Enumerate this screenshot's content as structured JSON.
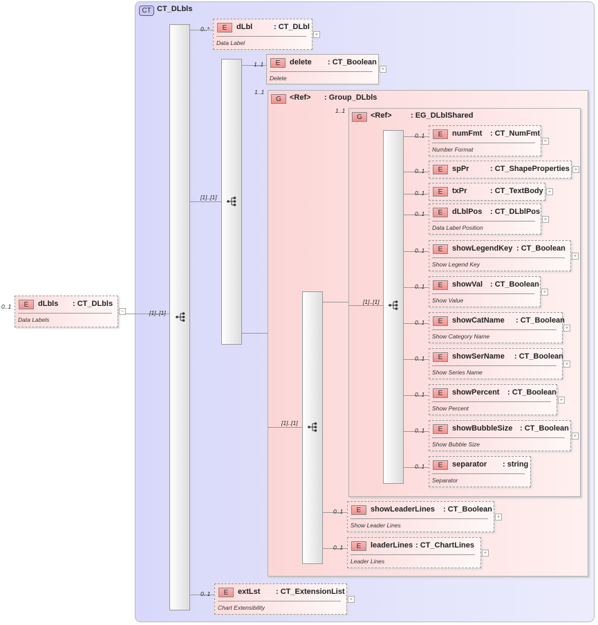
{
  "complex_type": {
    "badge": "CT",
    "name": "CT_DLbls"
  },
  "root": {
    "badge": "E",
    "name": "dLbls",
    "type": ": CT_DLbls",
    "doc": "Data Labels",
    "cardinality": "0..1",
    "expander": "−"
  },
  "sequences": [
    {
      "cardinality": "[1]..[1]"
    },
    {
      "cardinality": "[1]..[1]"
    },
    {
      "cardinality": "[1]..[1]"
    },
    {
      "cardinality": "[1]..[1]"
    }
  ],
  "groups": [
    {
      "badge": "G",
      "name": "<Ref>",
      "type": ": Group_DLbls",
      "cardinality": "1..1"
    },
    {
      "badge": "G",
      "name": "<Ref>",
      "type": ": EG_DLblShared",
      "cardinality": "1..1"
    }
  ],
  "elements": [
    {
      "name": "dLbl",
      "type": ": CT_DLbl",
      "doc": "Data Label",
      "cardinality": "0..*",
      "optional": true
    },
    {
      "name": "delete",
      "type": ": CT_Boolean",
      "doc": "Delete",
      "cardinality": "1..1",
      "optional": false
    },
    {
      "name": "numFmt",
      "type": ": CT_NumFmt",
      "doc": "Number Format",
      "cardinality": "0..1",
      "optional": true
    },
    {
      "name": "spPr",
      "type": ": CT_ShapeProperties",
      "doc": "",
      "cardinality": "0..1",
      "optional": true
    },
    {
      "name": "txPr",
      "type": ": CT_TextBody",
      "doc": "",
      "cardinality": "0..1",
      "optional": true
    },
    {
      "name": "dLblPos",
      "type": ": CT_DLblPos",
      "doc": "Data Label Position",
      "cardinality": "0..1",
      "optional": true
    },
    {
      "name": "showLegendKey",
      "type": ": CT_Boolean",
      "doc": "Show Legend Key",
      "cardinality": "0..1",
      "optional": true
    },
    {
      "name": "showVal",
      "type": ": CT_Boolean",
      "doc": "Show Value",
      "cardinality": "0..1",
      "optional": true
    },
    {
      "name": "showCatName",
      "type": ": CT_Boolean",
      "doc": "Show Category Name",
      "cardinality": "0..1",
      "optional": true
    },
    {
      "name": "showSerName",
      "type": ": CT_Boolean",
      "doc": "Show Series Name",
      "cardinality": "0..1",
      "optional": true
    },
    {
      "name": "showPercent",
      "type": ": CT_Boolean",
      "doc": "Show Percent",
      "cardinality": "0..1",
      "optional": true
    },
    {
      "name": "showBubbleSize",
      "type": ": CT_Boolean",
      "doc": "Show Bubble Size",
      "cardinality": "0..1",
      "optional": true
    },
    {
      "name": "separator",
      "type": ": string",
      "doc": "Separator",
      "cardinality": "0..1",
      "optional": true
    },
    {
      "name": "showLeaderLines",
      "type": ": CT_Boolean",
      "doc": "Show Leader Lines",
      "cardinality": "0..1",
      "optional": true
    },
    {
      "name": "leaderLines",
      "type": ": CT_ChartLines",
      "doc": "Leader Lines",
      "cardinality": "0..1",
      "optional": true
    },
    {
      "name": "extLst",
      "type": ": CT_ExtensionList",
      "doc": "Chart Extensibility",
      "cardinality": "0..1",
      "optional": true
    }
  ],
  "element_badge": "E",
  "expander_plus": "+"
}
